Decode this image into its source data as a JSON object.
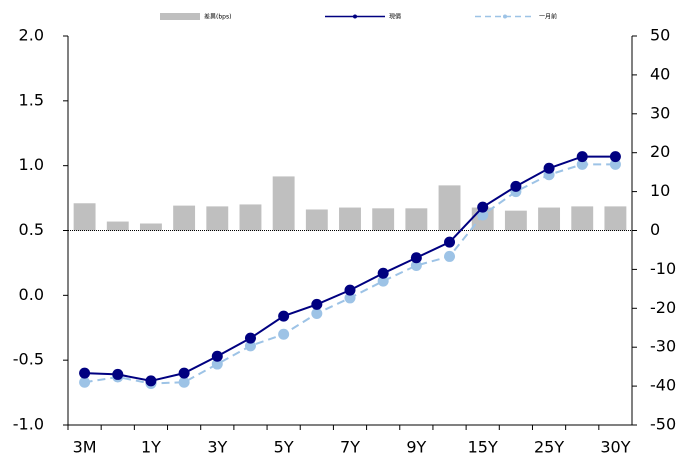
{
  "chart_data": {
    "type": "bar-line",
    "categories": [
      "3M",
      null,
      "1Y",
      null,
      "3Y",
      null,
      "5Y",
      null,
      "7Y",
      null,
      "9Y",
      null,
      "15Y",
      null,
      "25Y",
      null,
      "30Y"
    ],
    "series": [
      {
        "name": "差異(bps)",
        "type": "bar",
        "axis": "y2",
        "color": "#bfbfbf",
        "values": [
          7,
          2.3,
          1.8,
          6.4,
          6.2,
          6.7,
          13.9,
          5.4,
          5.9,
          5.7,
          5.7,
          11.6,
          5.9,
          5.1,
          5.9,
          6.2,
          6.2
        ]
      },
      {
        "name": "現價",
        "type": "line",
        "axis": "y",
        "color": "#000080",
        "values": [
          -0.6,
          -0.61,
          -0.66,
          -0.6,
          -0.47,
          -0.33,
          -0.16,
          -0.07,
          0.04,
          0.17,
          0.29,
          0.41,
          0.68,
          0.84,
          0.98,
          1.07,
          1.07
        ]
      },
      {
        "name": "一月前",
        "type": "line",
        "axis": "y",
        "color": "#9dc3e6",
        "dashed": true,
        "values": [
          -0.67,
          -0.63,
          -0.68,
          -0.67,
          -0.53,
          -0.39,
          -0.3,
          -0.14,
          -0.02,
          0.11,
          0.23,
          0.3,
          0.62,
          0.8,
          0.93,
          1.01,
          1.01
        ]
      }
    ],
    "ylim": [
      -1.0,
      2.0
    ],
    "yticks": [
      {
        "value": -1.0,
        "label": "-1.0"
      },
      {
        "value": -0.5,
        "label": "-0.5"
      },
      {
        "value": 0,
        "label": "0.0"
      },
      {
        "value": 0.5,
        "label": "0.5"
      },
      {
        "value": 1.0,
        "label": "1.0"
      },
      {
        "value": 1.5,
        "label": "1.5"
      },
      {
        "value": 2.0,
        "label": "2.0"
      }
    ],
    "y2lim": [
      -50,
      50
    ],
    "y2ticks": [
      -50,
      -40,
      -30,
      -20,
      -10,
      0,
      10,
      20,
      30,
      40,
      50
    ],
    "legend": "top"
  }
}
